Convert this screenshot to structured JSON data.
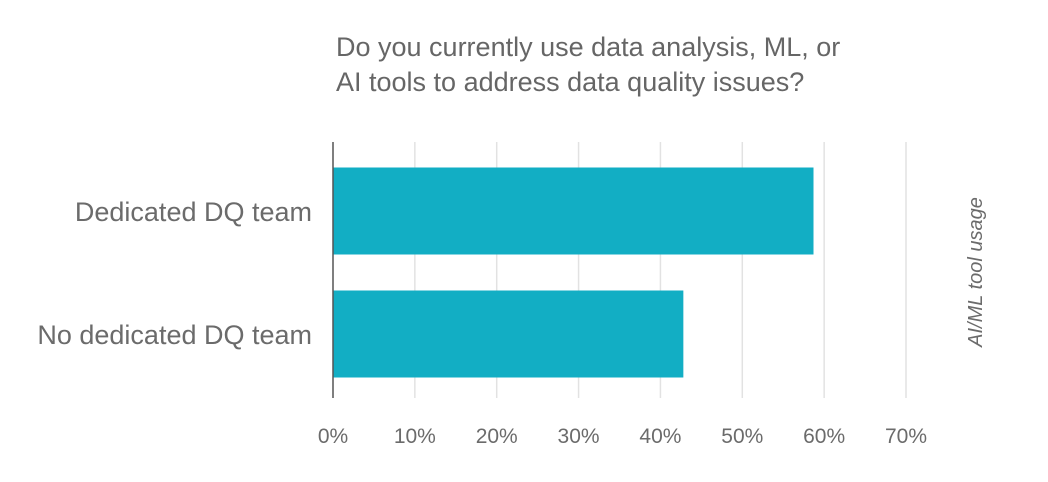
{
  "chart_data": {
    "type": "bar",
    "orientation": "horizontal",
    "title": "Do you currently use data analysis, ML, or AI tools to address data quality issues?",
    "title_lines": [
      "Do you currently use data analysis, ML, or",
      "AI tools to address data quality issues?"
    ],
    "categories": [
      "Dedicated DQ team",
      "No dedicated DQ team"
    ],
    "values": [
      58.7,
      42.8
    ],
    "series_label": "AI/ML tool usage",
    "xlim": [
      0,
      70
    ],
    "xticks": [
      0,
      10,
      20,
      30,
      40,
      50,
      60,
      70
    ],
    "xtick_labels": [
      "0%",
      "10%",
      "20%",
      "30%",
      "40%",
      "50%",
      "60%",
      "70%"
    ],
    "grid": true,
    "bar_color": "#12aec4",
    "grid_color": "#e2e2e2",
    "axis_color": "#555555"
  }
}
